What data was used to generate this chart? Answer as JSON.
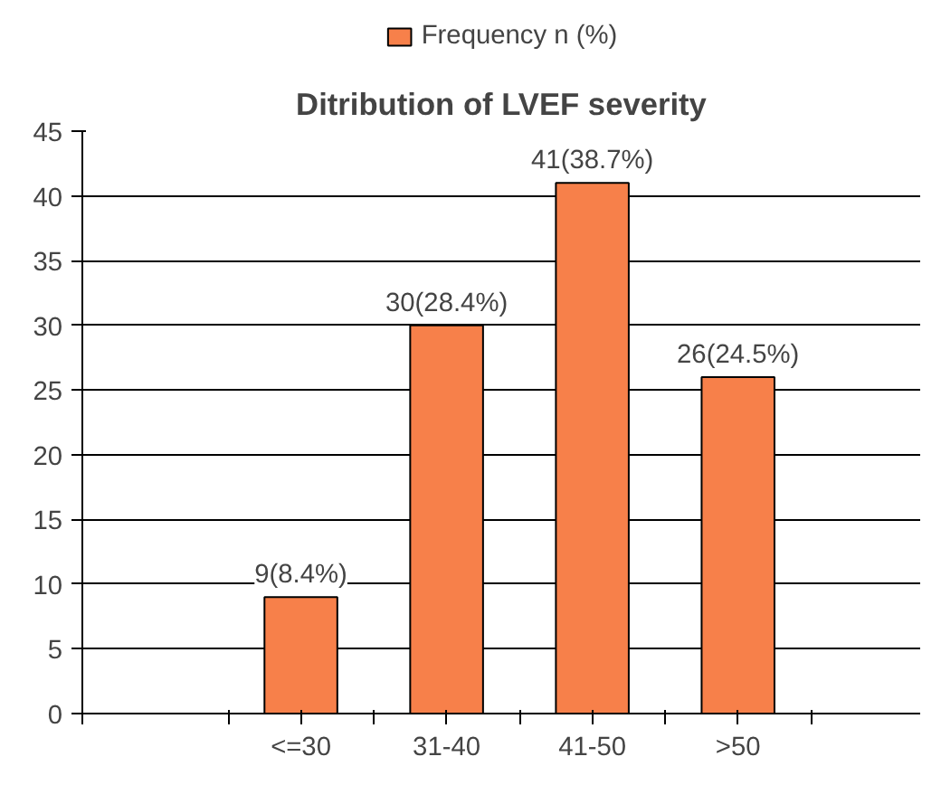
{
  "chart_data": {
    "type": "bar",
    "title": "Ditribution of LVEF severity",
    "categories": [
      "<=30",
      "31-40",
      "41-50",
      ">50"
    ],
    "series": [
      {
        "name": "Frequency n (%)",
        "color": "#f7804a",
        "values": [
          9,
          30,
          41,
          26
        ]
      }
    ],
    "value_labels": [
      "9(8.4%)",
      "30(28.4%)",
      "41(38.7%)",
      "26(24.5%)"
    ],
    "ylim": [
      0,
      45
    ],
    "yticks": [
      0,
      5,
      10,
      15,
      20,
      25,
      30,
      35,
      40,
      45
    ],
    "grid": "y",
    "legend": "top"
  }
}
